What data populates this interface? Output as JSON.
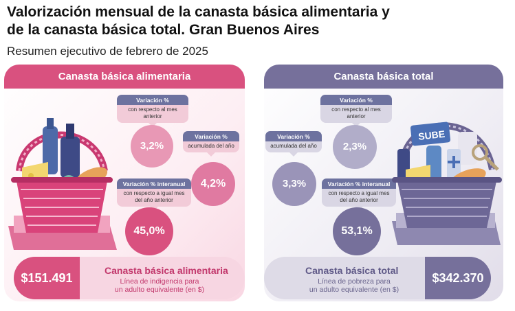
{
  "header": {
    "title_line1": "Valorización mensual de la canasta básica alimentaria y",
    "title_line2": "de la canasta básica total. Gran Buenos Aires",
    "subtitle": "Resumen ejecutivo de febrero de 2025"
  },
  "cba": {
    "header": "Canasta básica alimentaria",
    "monthly": {
      "head": "Variación %",
      "desc": "con respecto al mes anterior",
      "value": "3,2%"
    },
    "ytd": {
      "head": "Variación %",
      "desc": "acumulada del año",
      "value": "4,2%"
    },
    "yoy": {
      "head": "Variación % interanual",
      "desc": "con respecto a igual mes del año anterior",
      "value": "45,0%"
    },
    "amount": "$151.491",
    "bar_title": "Canasta básica alimentaria",
    "bar_desc_line1": "Línea de indigencia para",
    "bar_desc_line2": "un adulto equivalente (en $)"
  },
  "cbt": {
    "header": "Canasta básica total",
    "monthly": {
      "head": "Variación %",
      "desc": "con respecto al mes anterior",
      "value": "2,3%"
    },
    "ytd": {
      "head": "Variación %",
      "desc": "acumulada del año",
      "value": "3,3%"
    },
    "yoy": {
      "head": "Variación % interanual",
      "desc": "con respecto a igual mes del año anterior",
      "value": "53,1%"
    },
    "amount": "$342.370",
    "bar_title": "Canasta básica total",
    "bar_desc_line1": "Línea de pobreza para",
    "bar_desc_line2": "un adulto equivalente (en $)",
    "card_label": "SUBE"
  },
  "colors": {
    "pink_dark": "#d9517f",
    "pink_light": "#e898b5",
    "purple_dark": "#76709b",
    "purple_light": "#b1adc9"
  }
}
